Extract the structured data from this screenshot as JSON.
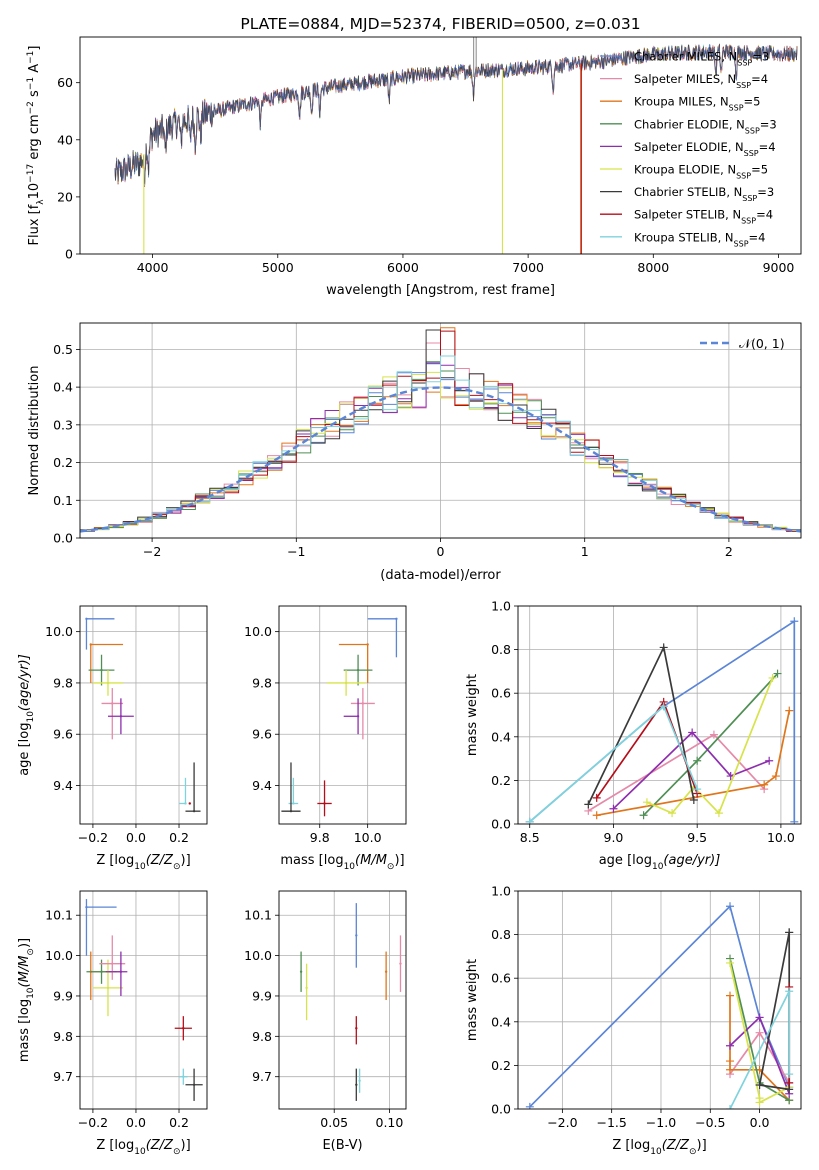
{
  "colors": {
    "chabrier_miles": "#5b85d6",
    "salpeter_miles": "#e58aa9",
    "kroupa_miles": "#e0761c",
    "chabrier_elodie": "#4f8f55",
    "salpeter_elodie": "#8e2eae",
    "kroupa_elodie": "#d7e34a",
    "chabrier_stelib": "#3a3a3a",
    "salpeter_stelib": "#b50e1a",
    "kroupa_stelib": "#7fd3dc",
    "normal_curve": "#5b85d6",
    "grid": "#b0b0b0"
  },
  "legend": [
    {
      "key": "chabrier_miles",
      "label": "Chabrier MILES, N",
      "n": "=3"
    },
    {
      "key": "salpeter_miles",
      "label": "Salpeter MILES, N",
      "n": "=4"
    },
    {
      "key": "kroupa_miles",
      "label": "Kroupa MILES, N",
      "n": "=5"
    },
    {
      "key": "chabrier_elodie",
      "label": "Chabrier ELODIE, N",
      "n": "=3"
    },
    {
      "key": "salpeter_elodie",
      "label": "Salpeter ELODIE, N",
      "n": "=4"
    },
    {
      "key": "kroupa_elodie",
      "label": "Kroupa ELODIE, N",
      "n": "=5"
    },
    {
      "key": "chabrier_stelib",
      "label": "Chabrier STELIB, N",
      "n": "=3"
    },
    {
      "key": "salpeter_stelib",
      "label": "Salpeter STELIB, N",
      "n": "=4"
    },
    {
      "key": "kroupa_stelib",
      "label": "Kroupa STELIB, N",
      "n": "=4"
    }
  ],
  "legend_subscript": "SSP",
  "chart_data": [
    {
      "id": "spectrum",
      "type": "line",
      "title": "PLATE=0884, MJD=52374, FIBERID=0500, z=0.031",
      "xlabel": "wavelength [Angstrom, rest frame]",
      "ylabel_pre": "Flux [f",
      "ylabel_sub": "λ",
      "ylabel_mid": "10",
      "ylabel_sup1": "−17",
      "ylabel_mid2": " erg cm",
      "ylabel_sup2": "−2",
      "ylabel_mid3": " s",
      "ylabel_sup3": "−1",
      "ylabel_mid4": " A",
      "ylabel_sup4": "−1",
      "ylabel_end": "]",
      "xlim": [
        3420,
        9180
      ],
      "ylim": [
        0,
        76
      ],
      "xticks": [
        4000,
        5000,
        6000,
        7000,
        8000,
        9000
      ],
      "yticks": [
        0,
        20,
        40,
        60
      ],
      "continuum": [
        [
          3700,
          28
        ],
        [
          3900,
          32
        ],
        [
          4000,
          42
        ],
        [
          4200,
          46
        ],
        [
          4500,
          50
        ],
        [
          5000,
          55
        ],
        [
          5500,
          59
        ],
        [
          6000,
          62
        ],
        [
          6500,
          64
        ],
        [
          7000,
          65
        ],
        [
          7500,
          67
        ],
        [
          8000,
          70
        ],
        [
          8500,
          71
        ],
        [
          9000,
          70
        ],
        [
          9150,
          70
        ]
      ],
      "xmax_data": 9150
    },
    {
      "id": "residual_hist",
      "type": "histogram",
      "xlabel": "(data-model)/error",
      "ylabel": "Normed distribution",
      "xlim": [
        -2.5,
        2.5
      ],
      "ylim": [
        0,
        0.57
      ],
      "xticks": [
        -2,
        -1,
        0,
        1,
        2
      ],
      "xtick_labels": [
        "−2",
        "−1",
        "0",
        "1",
        "2"
      ],
      "yticks": [
        0.0,
        0.1,
        0.2,
        0.3,
        0.4,
        0.5
      ],
      "ytick_labels": [
        "0.0",
        "0.1",
        "0.2",
        "0.3",
        "0.4",
        "0.5"
      ],
      "normal_label": "𝒩(0, 1)",
      "bin_width": 0.1
    },
    {
      "id": "age_vs_Z",
      "type": "errorbar",
      "xlabel_pre": "Z [log",
      "xlabel_sub": "10",
      "xlabel_post": "(Z/Z",
      "xlabel_sun": "⊙",
      "xlabel_end": ")]",
      "ylabel_pre": "age  [log",
      "ylabel_sub": "10",
      "ylabel_post": "(age/yr)]",
      "xlim": [
        -0.26,
        0.33
      ],
      "ylim": [
        9.25,
        10.1
      ],
      "xticks": [
        -0.2,
        0.0,
        0.2
      ],
      "xtick_labels": [
        "−0.2",
        "0.0",
        "0.2"
      ],
      "yticks": [
        9.4,
        9.6,
        9.8,
        10.0
      ],
      "ytick_labels": [
        "9.4",
        "9.6",
        "9.8",
        "10.0"
      ],
      "points": [
        {
          "key": "chabrier_miles",
          "x": -0.23,
          "y": 10.05,
          "xl": 0.0,
          "xh": 0.13,
          "yl": 0.12,
          "yh": 0.0
        },
        {
          "key": "kroupa_miles",
          "x": -0.21,
          "y": 9.95,
          "xl": 0.0,
          "xh": 0.15,
          "yl": 0.15,
          "yh": 0.0
        },
        {
          "key": "chabrier_elodie",
          "x": -0.16,
          "y": 9.85,
          "xl": 0.06,
          "xh": 0.06,
          "yl": 0.06,
          "yh": 0.06
        },
        {
          "key": "kroupa_elodie",
          "x": -0.13,
          "y": 9.8,
          "xl": 0.07,
          "xh": 0.07,
          "yl": 0.05,
          "yh": 0.05
        },
        {
          "key": "salpeter_miles",
          "x": -0.11,
          "y": 9.72,
          "xl": 0.05,
          "xh": 0.05,
          "yl": 0.14,
          "yh": 0.06
        },
        {
          "key": "salpeter_elodie",
          "x": -0.07,
          "y": 9.67,
          "xl": 0.06,
          "xh": 0.06,
          "yl": 0.07,
          "yh": 0.07
        },
        {
          "key": "kroupa_stelib",
          "x": 0.23,
          "y": 9.33,
          "xl": 0.03,
          "xh": 0.0,
          "yl": 0.0,
          "yh": 0.1
        },
        {
          "key": "chabrier_stelib",
          "x": 0.27,
          "y": 9.3,
          "xl": 0.04,
          "xh": 0.03,
          "yl": 0.0,
          "yh": 0.19
        },
        {
          "key": "salpeter_stelib",
          "x": 0.25,
          "y": 9.33,
          "xl": 0.0,
          "xh": 0.0,
          "yl": 0.0,
          "yh": 0.0
        }
      ]
    },
    {
      "id": "age_vs_mass",
      "type": "errorbar",
      "xlabel_pre": "mass [log",
      "xlabel_sub": "10",
      "xlabel_post": "(M/M",
      "xlabel_sun": "⊙",
      "xlabel_end": ")]",
      "ylabel": "",
      "xlim": [
        9.63,
        10.16
      ],
      "ylim": [
        9.25,
        10.1
      ],
      "xticks": [
        9.8,
        10.0
      ],
      "xtick_labels": [
        "9.8",
        "10.0"
      ],
      "yticks": [
        9.4,
        9.6,
        9.8,
        10.0
      ],
      "ytick_labels": [
        "9.4",
        "9.6",
        "9.8",
        "10.0"
      ],
      "points": [
        {
          "key": "chabrier_miles",
          "x": 10.12,
          "y": 10.05,
          "xl": 0.12,
          "xh": 0.0,
          "yl": 0.15,
          "yh": 0.0
        },
        {
          "key": "kroupa_miles",
          "x": 10.0,
          "y": 9.95,
          "xl": 0.12,
          "xh": 0.0,
          "yl": 0.15,
          "yh": 0.0
        },
        {
          "key": "chabrier_elodie",
          "x": 9.96,
          "y": 9.85,
          "xl": 0.06,
          "xh": 0.06,
          "yl": 0.06,
          "yh": 0.06
        },
        {
          "key": "kroupa_elodie",
          "x": 9.91,
          "y": 9.8,
          "xl": 0.08,
          "xh": 0.08,
          "yl": 0.05,
          "yh": 0.05
        },
        {
          "key": "salpeter_miles",
          "x": 9.98,
          "y": 9.72,
          "xl": 0.05,
          "xh": 0.05,
          "yl": 0.14,
          "yh": 0.06
        },
        {
          "key": "salpeter_elodie",
          "x": 9.96,
          "y": 9.67,
          "xl": 0.06,
          "xh": 0.0,
          "yl": 0.07,
          "yh": 0.07
        },
        {
          "key": "kroupa_stelib",
          "x": 9.69,
          "y": 9.33,
          "xl": 0.02,
          "xh": 0.02,
          "yl": 0.0,
          "yh": 0.1
        },
        {
          "key": "chabrier_stelib",
          "x": 9.68,
          "y": 9.3,
          "xl": 0.04,
          "xh": 0.04,
          "yl": 0.0,
          "yh": 0.19
        },
        {
          "key": "salpeter_stelib",
          "x": 9.82,
          "y": 9.33,
          "xl": 0.03,
          "xh": 0.03,
          "yl": 0.05,
          "yh": 0.09
        }
      ]
    },
    {
      "id": "mass_weight_vs_age",
      "type": "line",
      "xlabel_pre": "age  [log",
      "xlabel_sub": "10",
      "xlabel_post": "(age/yr)]",
      "ylabel": "mass weight",
      "xlim": [
        8.43,
        10.12
      ],
      "ylim": [
        0,
        1.0
      ],
      "xticks": [
        8.5,
        9.0,
        9.5,
        10.0
      ],
      "xtick_labels": [
        "8.5",
        "9.0",
        "9.5",
        "10.0"
      ],
      "yticks": [
        0.0,
        0.2,
        0.4,
        0.6,
        0.8,
        1.0
      ],
      "ytick_labels": [
        "0.0",
        "0.2",
        "0.4",
        "0.6",
        "0.8",
        "1.0"
      ],
      "series": [
        {
          "key": "chabrier_miles",
          "x": [
            8.5,
            9.3,
            10.08,
            10.08
          ],
          "y": [
            0.01,
            0.54,
            0.93,
            0.01
          ]
        },
        {
          "key": "salpeter_miles",
          "x": [
            8.85,
            9.6,
            9.9
          ],
          "y": [
            0.06,
            0.41,
            0.16
          ]
        },
        {
          "key": "kroupa_miles",
          "x": [
            8.9,
            9.9,
            9.97,
            10.05
          ],
          "y": [
            0.04,
            0.18,
            0.22,
            0.52
          ]
        },
        {
          "key": "chabrier_elodie",
          "x": [
            9.18,
            9.5,
            9.98
          ],
          "y": [
            0.04,
            0.29,
            0.69
          ]
        },
        {
          "key": "salpeter_elodie",
          "x": [
            9.0,
            9.47,
            9.7,
            9.93
          ],
          "y": [
            0.07,
            0.42,
            0.22,
            0.29
          ]
        },
        {
          "key": "kroupa_elodie",
          "x": [
            9.2,
            9.35,
            9.48,
            9.63,
            9.95
          ],
          "y": [
            0.1,
            0.05,
            0.17,
            0.05,
            0.67
          ]
        },
        {
          "key": "chabrier_stelib",
          "x": [
            8.85,
            9.3,
            9.48
          ],
          "y": [
            0.09,
            0.81,
            0.11
          ]
        },
        {
          "key": "salpeter_stelib",
          "x": [
            8.9,
            9.3,
            9.5
          ],
          "y": [
            0.12,
            0.56,
            0.14
          ]
        },
        {
          "key": "kroupa_stelib",
          "x": [
            8.5,
            9.3,
            9.5
          ],
          "y": [
            0.01,
            0.54,
            0.16
          ]
        }
      ]
    },
    {
      "id": "mass_vs_Z",
      "type": "errorbar",
      "xlabel_pre": "Z [log",
      "xlabel_sub": "10",
      "xlabel_post": "(Z/Z",
      "xlabel_sun": "⊙",
      "xlabel_end": ")]",
      "ylabel_pre": "mass [log",
      "ylabel_sub": "10",
      "ylabel_post": "(M/M",
      "ylabel_sun": "⊙",
      "ylabel_end": ")]",
      "xlim": [
        -0.26,
        0.33
      ],
      "ylim": [
        9.62,
        10.16
      ],
      "xticks": [
        -0.2,
        0.0,
        0.2
      ],
      "xtick_labels": [
        "−0.2",
        "0.0",
        "0.2"
      ],
      "yticks": [
        9.7,
        9.8,
        9.9,
        10.0,
        10.1
      ],
      "ytick_labels": [
        "9.7",
        "9.8",
        "9.9",
        "10.0",
        "10.1"
      ],
      "points": [
        {
          "key": "chabrier_miles",
          "x": -0.23,
          "y": 10.12,
          "xl": 0.0,
          "xh": 0.14,
          "yl": 0.12,
          "yh": 0.02
        },
        {
          "key": "kroupa_miles",
          "x": -0.21,
          "y": 9.96,
          "xl": 0.0,
          "xh": 0.14,
          "yl": 0.07,
          "yh": 0.05
        },
        {
          "key": "chabrier_elodie",
          "x": -0.16,
          "y": 9.96,
          "xl": 0.07,
          "xh": 0.07,
          "yl": 0.03,
          "yh": 0.03
        },
        {
          "key": "kroupa_elodie",
          "x": -0.13,
          "y": 9.92,
          "xl": 0.07,
          "xh": 0.07,
          "yl": 0.07,
          "yh": 0.07
        },
        {
          "key": "salpeter_miles",
          "x": -0.11,
          "y": 9.98,
          "xl": 0.06,
          "xh": 0.06,
          "yl": 0.04,
          "yh": 0.07
        },
        {
          "key": "salpeter_elodie",
          "x": -0.07,
          "y": 9.96,
          "xl": 0.07,
          "xh": 0.03,
          "yl": 0.06,
          "yh": 0.05
        },
        {
          "key": "salpeter_stelib",
          "x": 0.22,
          "y": 9.82,
          "xl": 0.04,
          "xh": 0.04,
          "yl": 0.03,
          "yh": 0.03
        },
        {
          "key": "kroupa_stelib",
          "x": 0.22,
          "y": 9.7,
          "xl": 0.02,
          "xh": 0.02,
          "yl": 0.02,
          "yh": 0.02
        },
        {
          "key": "chabrier_stelib",
          "x": 0.27,
          "y": 9.68,
          "xl": 0.04,
          "xh": 0.04,
          "yl": 0.04,
          "yh": 0.04
        }
      ]
    },
    {
      "id": "mass_vs_ebv",
      "type": "errorbar",
      "xlabel": "E(B-V)",
      "ylabel": "",
      "xlim": [
        0.0,
        0.115
      ],
      "ylim": [
        9.62,
        10.16
      ],
      "xticks": [
        0.05,
        0.1
      ],
      "xtick_labels": [
        "0.05",
        "0.10"
      ],
      "yticks": [
        9.7,
        9.8,
        9.9,
        10.0,
        10.1
      ],
      "ytick_labels": [
        "9.7",
        "9.8",
        "9.9",
        "10.0",
        "10.1"
      ],
      "points": [
        {
          "key": "chabrier_miles",
          "x": 0.07,
          "y": 10.05,
          "xl": 0.0,
          "xh": 0.0,
          "yl": 0.08,
          "yh": 0.08
        },
        {
          "key": "kroupa_miles",
          "x": 0.097,
          "y": 9.96,
          "xl": 0.0,
          "xh": 0.0,
          "yl": 0.07,
          "yh": 0.05
        },
        {
          "key": "salpeter_miles",
          "x": 0.11,
          "y": 9.98,
          "xl": 0.0,
          "xh": 0.0,
          "yl": 0.07,
          "yh": 0.07
        },
        {
          "key": "chabrier_elodie",
          "x": 0.02,
          "y": 9.96,
          "xl": 0.0,
          "xh": 0.0,
          "yl": 0.05,
          "yh": 0.05
        },
        {
          "key": "kroupa_elodie",
          "x": 0.025,
          "y": 9.92,
          "xl": 0.0,
          "xh": 0.0,
          "yl": 0.08,
          "yh": 0.06
        },
        {
          "key": "salpeter_stelib",
          "x": 0.07,
          "y": 9.82,
          "xl": 0.0,
          "xh": 0.0,
          "yl": 0.04,
          "yh": 0.03
        },
        {
          "key": "chabrier_stelib",
          "x": 0.07,
          "y": 9.68,
          "xl": 0.0,
          "xh": 0.0,
          "yl": 0.04,
          "yh": 0.04
        },
        {
          "key": "kroupa_stelib",
          "x": 0.073,
          "y": 9.69,
          "xl": 0.0,
          "xh": 0.0,
          "yl": 0.03,
          "yh": 0.03
        }
      ]
    },
    {
      "id": "mass_weight_vs_Z",
      "type": "line",
      "xlabel_pre": "Z [log",
      "xlabel_sub": "10",
      "xlabel_post": "(Z/Z",
      "xlabel_sun": "⊙",
      "xlabel_end": ")]",
      "ylabel": "mass weight",
      "xlim": [
        -2.45,
        0.42
      ],
      "ylim": [
        0,
        1.0
      ],
      "xticks": [
        -2.0,
        -1.5,
        -1.0,
        -0.5,
        0.0
      ],
      "xtick_labels": [
        "−2.0",
        "−1.5",
        "−1.0",
        "−0.5",
        "0.0"
      ],
      "yticks": [
        0.0,
        0.2,
        0.4,
        0.6,
        0.8,
        1.0
      ],
      "ytick_labels": [
        "0.0",
        "0.2",
        "0.4",
        "0.6",
        "0.8",
        "1.0"
      ],
      "series": [
        {
          "key": "chabrier_miles",
          "x": [
            -2.33,
            -0.3,
            0.0,
            0.3
          ],
          "y": [
            0.01,
            0.93,
            0.42,
            0.1
          ]
        },
        {
          "key": "salpeter_miles",
          "x": [
            -0.3,
            0.0,
            0.3
          ],
          "y": [
            0.16,
            0.35,
            0.12
          ]
        },
        {
          "key": "kroupa_miles",
          "x": [
            -0.3,
            -0.3,
            -0.3,
            0.0,
            0.3
          ],
          "y": [
            0.52,
            0.22,
            0.18,
            0.18,
            0.04
          ]
        },
        {
          "key": "chabrier_elodie",
          "x": [
            -0.3,
            0.0,
            0.3
          ],
          "y": [
            0.69,
            0.12,
            0.04
          ]
        },
        {
          "key": "salpeter_elodie",
          "x": [
            -0.3,
            0.0,
            0.3
          ],
          "y": [
            0.29,
            0.42,
            0.07
          ]
        },
        {
          "key": "kroupa_elodie",
          "x": [
            -0.3,
            0.0,
            0.0,
            0.3
          ],
          "y": [
            0.67,
            0.05,
            0.03,
            0.1
          ]
        },
        {
          "key": "chabrier_stelib",
          "x": [
            0.3,
            0.0,
            0.3,
            0.3
          ],
          "y": [
            0.81,
            0.11,
            0.09,
            0.81
          ]
        },
        {
          "key": "salpeter_stelib",
          "x": [
            0.3,
            0.3
          ],
          "y": [
            0.56,
            0.12
          ]
        },
        {
          "key": "kroupa_stelib",
          "x": [
            -0.3,
            0.3,
            0.3
          ],
          "y": [
            0.0,
            0.54,
            0.16
          ]
        }
      ]
    }
  ]
}
